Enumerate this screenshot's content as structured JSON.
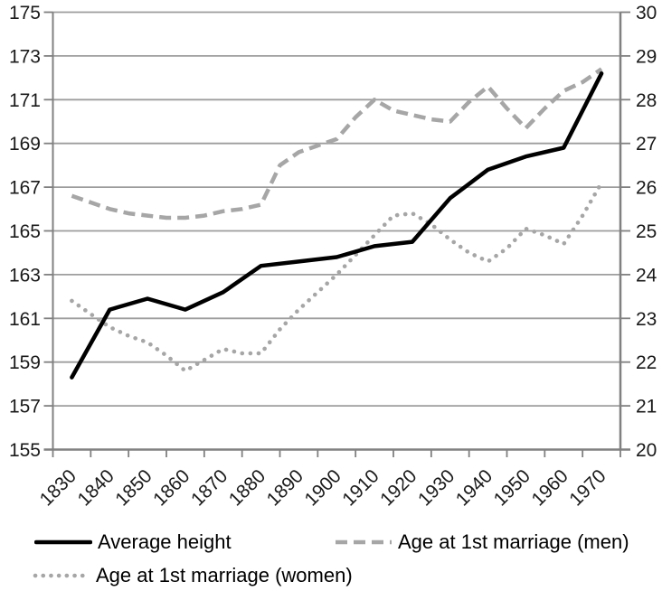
{
  "chart_data": {
    "type": "line",
    "title": "",
    "xlabel": "",
    "ylabel_left": "",
    "ylabel_right": "",
    "grid": true,
    "legend_position": "bottom",
    "x_categories": [
      "1830",
      "1840",
      "1850",
      "1860",
      "1870",
      "1880",
      "1890",
      "1900",
      "1910",
      "1920",
      "1930",
      "1940",
      "1950",
      "1960",
      "1970"
    ],
    "axes": {
      "left": {
        "min": 155,
        "max": 175,
        "step": 2,
        "tick_labels": [
          "175",
          "173",
          "171",
          "169",
          "167",
          "165",
          "163",
          "161",
          "159",
          "157",
          "155"
        ]
      },
      "right": {
        "min": 20,
        "max": 30,
        "step": 1,
        "tick_labels": [
          "30",
          "29",
          "28",
          "27",
          "26",
          "25",
          "24",
          "23",
          "22",
          "21",
          "20"
        ]
      }
    },
    "series": [
      {
        "id": "average-height",
        "name": "Average height",
        "axis": "left",
        "style": "solid",
        "color": "#000000",
        "x": [
          1830,
          1840,
          1850,
          1860,
          1870,
          1880,
          1890,
          1900,
          1910,
          1920,
          1930,
          1940,
          1950,
          1960,
          1970
        ],
        "values": [
          158.3,
          161.4,
          161.9,
          161.4,
          162.2,
          163.4,
          163.6,
          163.8,
          164.3,
          164.5,
          166.5,
          167.8,
          168.4,
          168.8,
          172.2
        ]
      },
      {
        "id": "age-first-marriage-men",
        "name": "Age at 1st marriage (men)",
        "axis": "right",
        "style": "dashed",
        "color": "#a6a6a6",
        "x": [
          1830,
          1835,
          1840,
          1845,
          1850,
          1855,
          1860,
          1865,
          1870,
          1875,
          1880,
          1885,
          1890,
          1895,
          1900,
          1905,
          1910,
          1915,
          1920,
          1925,
          1930,
          1935,
          1940,
          1945,
          1950,
          1955,
          1960,
          1965,
          1970
        ],
        "values": [
          25.8,
          25.65,
          25.5,
          25.4,
          25.35,
          25.3,
          25.3,
          25.35,
          25.45,
          25.5,
          25.6,
          26.5,
          26.8,
          26.95,
          27.1,
          27.6,
          28.0,
          27.75,
          27.65,
          27.55,
          27.5,
          27.95,
          28.3,
          27.8,
          27.35,
          27.8,
          28.2,
          28.4,
          28.7
        ]
      },
      {
        "id": "age-first-marriage-women",
        "name": "Age at 1st marriage (women)",
        "axis": "right",
        "style": "dotted",
        "color": "#a6a6a6",
        "x": [
          1830,
          1835,
          1840,
          1845,
          1850,
          1855,
          1860,
          1865,
          1870,
          1875,
          1880,
          1885,
          1890,
          1895,
          1900,
          1905,
          1910,
          1915,
          1920,
          1925,
          1930,
          1935,
          1940,
          1945,
          1950,
          1955,
          1960,
          1965,
          1970
        ],
        "values": [
          23.4,
          23.1,
          22.8,
          22.6,
          22.45,
          22.15,
          21.8,
          22.05,
          22.3,
          22.2,
          22.2,
          22.75,
          23.2,
          23.6,
          24.0,
          24.45,
          24.9,
          25.35,
          25.4,
          25.15,
          24.8,
          24.5,
          24.3,
          24.6,
          25.05,
          24.9,
          24.7,
          25.35,
          26.1
        ]
      }
    ]
  },
  "colors": {
    "background": "#ffffff",
    "series_black": "#000000",
    "series_gray": "#a6a6a6",
    "gridline": "#9d9d9d",
    "axis": "#808080",
    "label": "#1a1a1a"
  },
  "legend": {
    "items": [
      {
        "label": "Average height"
      },
      {
        "label": "Age at 1st marriage (men)"
      },
      {
        "label": "Age at 1st marriage (women)"
      }
    ]
  }
}
